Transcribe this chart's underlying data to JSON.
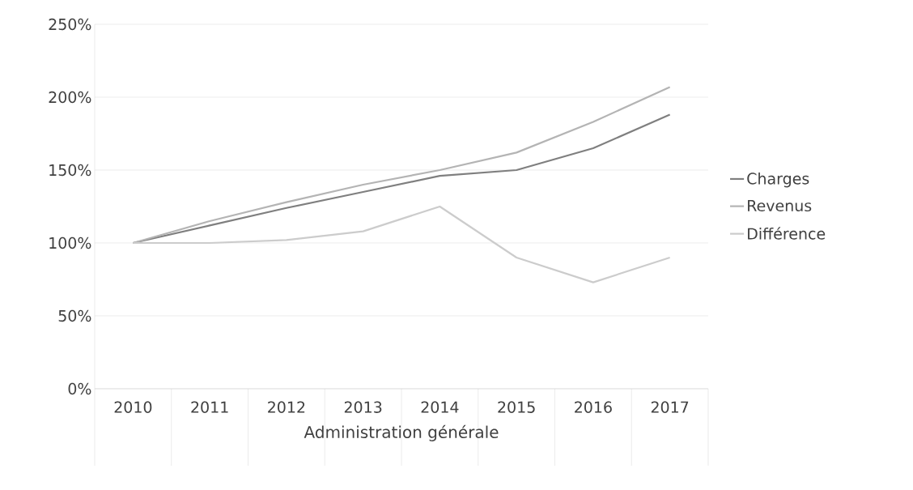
{
  "chart_data": {
    "type": "line",
    "xlabel": "Administration générale",
    "categories": [
      "2010",
      "2011",
      "2012",
      "2013",
      "2014",
      "2015",
      "2016",
      "2017"
    ],
    "series": [
      {
        "name": "Charges",
        "color": "#7f7f7f",
        "values": [
          100,
          112,
          124,
          135,
          146,
          150,
          165,
          188
        ]
      },
      {
        "name": "Revenus",
        "color": "#b4b4b4",
        "values": [
          100,
          115,
          128,
          140,
          150,
          162,
          183,
          207
        ]
      },
      {
        "name": "Différence",
        "color": "#cccccc",
        "values": [
          100,
          100,
          102,
          108,
          125,
          90,
          73,
          90
        ]
      }
    ],
    "ylim": [
      0,
      250
    ],
    "yticks": [
      {
        "value": 0,
        "label": "0%"
      },
      {
        "value": 50,
        "label": "50%"
      },
      {
        "value": 100,
        "label": "100%"
      },
      {
        "value": 150,
        "label": "150%"
      },
      {
        "value": 200,
        "label": "200%"
      },
      {
        "value": 250,
        "label": "250%"
      }
    ],
    "grid": "y",
    "legend": "right",
    "marker": "none",
    "line_style": "solid"
  }
}
